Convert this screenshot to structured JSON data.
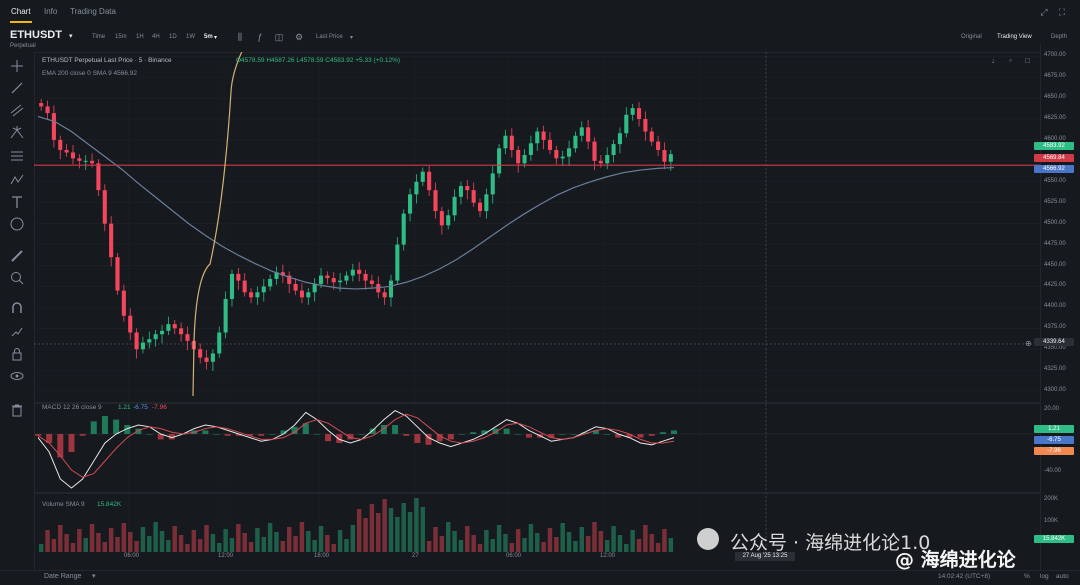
{
  "tabs": [
    {
      "label": "Chart"
    },
    {
      "label": "Info"
    },
    {
      "label": "Trading Data"
    }
  ],
  "symbol": {
    "name": "ETHUSDT",
    "type": "Perpetual"
  },
  "timeframes": [
    "Time",
    "15m",
    "1H",
    "4H",
    "1D",
    "1W",
    "5m"
  ],
  "selected_timeframe": "5m",
  "price_source": "Last Price",
  "views": [
    "Original",
    "Trading View",
    "Depth"
  ],
  "selected_view": "Trading View",
  "legend": {
    "title": "ETHUSDT Perpetual Last Price · 5 · Binance",
    "ohlc": "O4578.59 H4587.26 L4578.59 C4583.92 +5.33 (+0.12%)",
    "ema": "EMA 200 close 0 SMA 9  4566.92"
  },
  "macd_legend": {
    "label": "MACD 12 26 close 9",
    "v1": "1.21",
    "v2": "-6.75",
    "v3": "-7.96"
  },
  "volume_legend": {
    "label": "Volume SMA 9",
    "value": "15.842K"
  },
  "price_axis": [
    "4700.00",
    "4675.00",
    "4650.00",
    "4625.00",
    "4600.00",
    "4575.00",
    "4550.00",
    "4525.00",
    "4500.00",
    "4475.00",
    "4450.00",
    "4425.00",
    "4400.00",
    "4375.00",
    "4350.00",
    "4325.00",
    "4300.00"
  ],
  "price_badges": {
    "last": "4583.92",
    "line": "4569.84",
    "ema": "4566.92",
    "cross": "4339.64"
  },
  "macd_axis": [
    "20.00",
    "-20.00",
    "-40.00"
  ],
  "macd_badges": {
    "a": "1.21",
    "b": "-6.75",
    "c": "-7.96"
  },
  "volume_axis": [
    "200K",
    "100K"
  ],
  "volume_badge": "15.842K",
  "time_axis": [
    "06:00",
    "12:00",
    "18:00",
    "27",
    "06:00",
    "12:00"
  ],
  "time_highlight": "27 Aug '25 13:25",
  "bottom": {
    "date_range": "Date Range",
    "clock": "14:02:42 (UTC+8)",
    "pct": "%",
    "log": "log",
    "auto": "auto"
  },
  "watermark": {
    "wechat": "公众号 · 海绵进化论1.0",
    "brand": "@ 海绵进化论"
  },
  "colors": {
    "bg": "#161a1e",
    "up": "#2ebd85",
    "down": "#f6465d",
    "ema": "#6b7d99",
    "hline": "#cf3a46",
    "fib": "#d4b273",
    "macd": "#e6e6e6",
    "signal": "#d04a55"
  },
  "chart_data": {
    "type": "candlestick",
    "title": "ETHUSDT Perpetual Last Price · 5 · Binance",
    "y_range": [
      4287,
      4705
    ],
    "close": [
      4640,
      4632,
      4600,
      4588,
      4585,
      4578,
      4575,
      4575,
      4572,
      4540,
      4500,
      4460,
      4420,
      4390,
      4370,
      4350,
      4358,
      4362,
      4368,
      4372,
      4380,
      4375,
      4368,
      4360,
      4350,
      4340,
      4335,
      4345,
      4370,
      4410,
      4440,
      4432,
      4418,
      4412,
      4418,
      4425,
      4434,
      4442,
      4438,
      4428,
      4420,
      4412,
      4418,
      4428,
      4438,
      4435,
      4430,
      4432,
      4438,
      4445,
      4440,
      4432,
      4428,
      4418,
      4412,
      4432,
      4475,
      4512,
      4535,
      4550,
      4562,
      4540,
      4515,
      4498,
      4510,
      4532,
      4545,
      4540,
      4525,
      4515,
      4535,
      4560,
      4590,
      4605,
      4588,
      4572,
      4582,
      4596,
      4610,
      4600,
      4588,
      4578,
      4580,
      4590,
      4605,
      4615,
      4598,
      4575,
      4572,
      4582,
      4595,
      4608,
      4630,
      4638,
      4625,
      4610,
      4598,
      4588,
      4574,
      4583
    ],
    "ema200": [
      4628,
      4622,
      4610,
      4595,
      4580,
      4565,
      4548,
      4532,
      4516,
      4500,
      4486,
      4473,
      4462,
      4452,
      4443,
      4436,
      4430,
      4426,
      4423,
      4422,
      4423,
      4425,
      4430,
      4437,
      4446,
      4457,
      4470,
      4484,
      4498,
      4511,
      4523,
      4534,
      4543,
      4550,
      4556,
      4561,
      4564,
      4566,
      4567
    ],
    "macd": [
      -2,
      -10,
      -25,
      -30,
      -25,
      -15,
      -5,
      0,
      3,
      5,
      4,
      0,
      -2,
      0,
      3,
      5,
      4,
      2,
      0,
      -2,
      -4,
      -3,
      0,
      5,
      12,
      8,
      2,
      -3,
      -5,
      -3,
      2,
      8,
      13,
      10,
      4,
      -2,
      -5,
      -7,
      -5,
      -3,
      0,
      4,
      8,
      6,
      2,
      -1,
      -4,
      -3,
      -2,
      1,
      4,
      3,
      0,
      -2,
      -5,
      -6,
      -4,
      -2
    ],
    "signal": [
      -1,
      -5,
      -12,
      -20,
      -24,
      -22,
      -15,
      -8,
      -2,
      2,
      4,
      3,
      1,
      0,
      1,
      3,
      4,
      3,
      1,
      -1,
      -3,
      -3,
      -2,
      1,
      6,
      8,
      6,
      2,
      -2,
      -3,
      -1,
      3,
      8,
      11,
      9,
      4,
      -1,
      -4,
      -5,
      -4,
      -2,
      1,
      5,
      6,
      4,
      1,
      -2,
      -3,
      -2,
      0,
      2,
      3,
      2,
      0,
      -3,
      -5,
      -5,
      -4
    ]
  }
}
